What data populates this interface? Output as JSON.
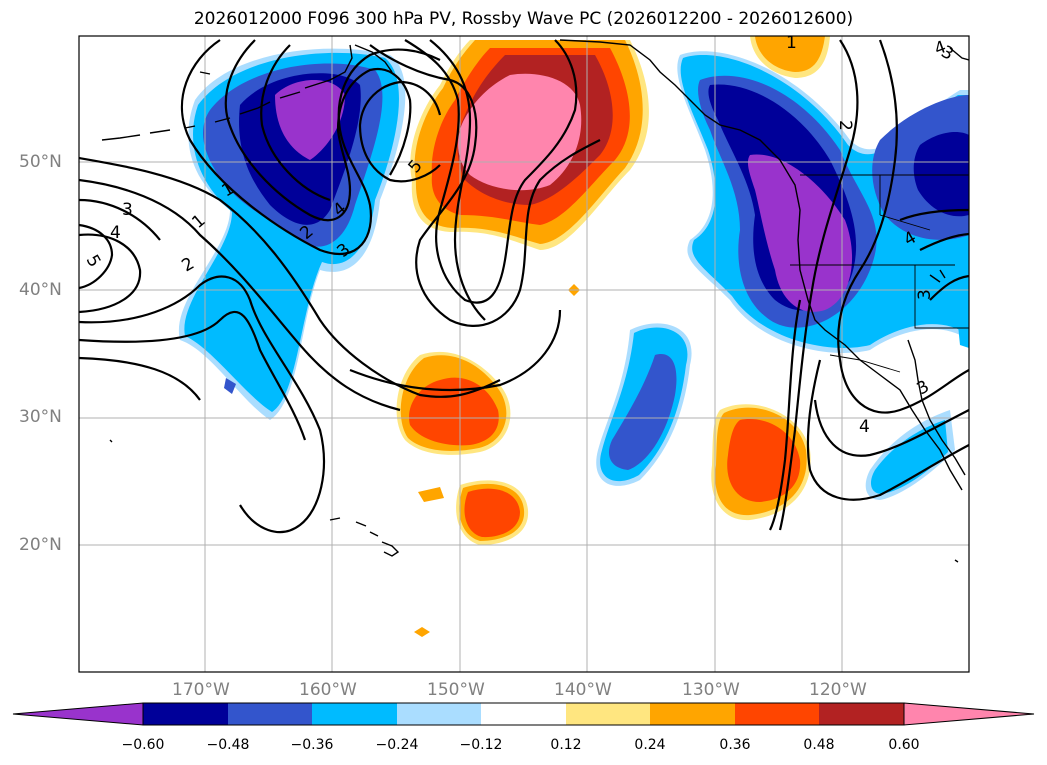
{
  "title": "2026012000 F096 300 hPa PV, Rossby Wave PC (2026012200 - 2026012600)",
  "map": {
    "lat_ticks": [
      "50°N",
      "40°N",
      "30°N",
      "20°N"
    ],
    "lon_ticks": [
      "170°W",
      "160°W",
      "150°W",
      "140°W",
      "130°W",
      "120°W"
    ],
    "contour_labels": [
      "1",
      "2",
      "3",
      "4",
      "5",
      "1",
      "2",
      "3",
      "4",
      "5",
      "2",
      "3",
      "4",
      "3",
      "4",
      "4",
      "3",
      "1"
    ]
  },
  "colorbar": {
    "tick_labels": [
      "−0.60",
      "−0.48",
      "−0.36",
      "−0.24",
      "−0.12",
      "0.12",
      "0.24",
      "0.36",
      "0.48",
      "0.60"
    ],
    "colors": [
      "#9933cc",
      "#000099",
      "#3355cc",
      "#00bbff",
      "#aaddff",
      "#ffffff",
      "#ffe680",
      "#ffa500",
      "#ff4500",
      "#b22222",
      "#ff85ad",
      "#ff85ad"
    ]
  }
}
